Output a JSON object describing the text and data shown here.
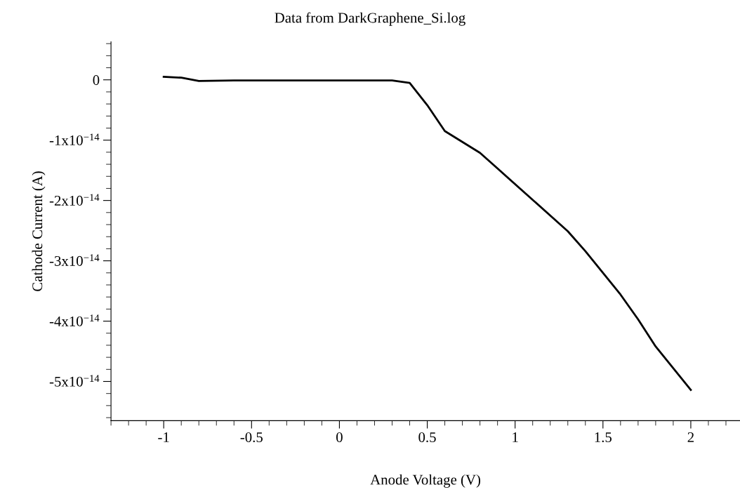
{
  "chart_data": {
    "type": "line",
    "title": "Data from DarkGraphene_Si.log",
    "xlabel": "Anode Voltage (V)",
    "ylabel": "Cathode Current (A)",
    "x": [
      -1,
      -0.9,
      -0.8,
      -0.6,
      0.3,
      0.4,
      0.5,
      0.6,
      0.8,
      0.9,
      1.1,
      1.3,
      1.4,
      1.6,
      1.7,
      1.8,
      2.0
    ],
    "series": [
      {
        "color": "#000000",
        "values": [
          5e-16,
          3.5e-16,
          -2e-16,
          -1e-16,
          -1e-16,
          -5e-16,
          -4.2e-15,
          -8.5e-15,
          -1.21e-14,
          -1.47e-14,
          -1.99e-14,
          -2.51e-14,
          -2.84e-14,
          -3.56e-14,
          -3.97e-14,
          -4.42e-14,
          -5.14e-14
        ]
      }
    ],
    "xlim": [
      -1.3,
      2.28
    ],
    "ylim": [
      -5.65e-14,
      6.3e-15
    ],
    "xticks": [
      -1,
      -0.5,
      0,
      0.5,
      1,
      1.5,
      2
    ],
    "yticks": [
      {
        "value": 0,
        "label": "0"
      },
      {
        "value": -1e-14,
        "label": "-1x10$^{−14}$"
      },
      {
        "value": -2e-14,
        "label": "-2x10$^{−14}$"
      },
      {
        "value": -3e-14,
        "label": "-3x10$^{−14}$"
      },
      {
        "value": -4e-14,
        "label": "-4x10$^{−14}$"
      },
      {
        "value": -5e-14,
        "label": "-5x10$^{−14}$"
      }
    ],
    "line_style": "solid",
    "grid": false,
    "legend": false
  }
}
